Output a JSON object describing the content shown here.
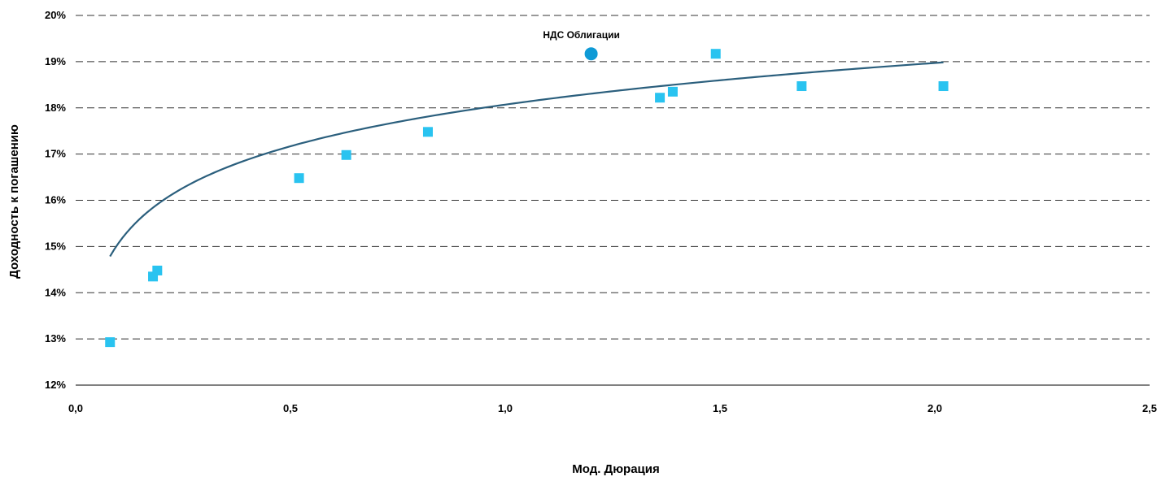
{
  "chart_data": {
    "type": "scatter",
    "title": "",
    "xlabel": "Мод. Дюрация",
    "ylabel": "Доходность к погашению",
    "xlim": [
      0,
      2.5
    ],
    "ylim": [
      12,
      20
    ],
    "x_ticks": [
      0,
      0.5,
      1.0,
      1.5,
      2.0,
      2.5
    ],
    "x_tick_labels": [
      "0,0",
      "0,5",
      "1,0",
      "1,5",
      "2,0",
      "2,5"
    ],
    "y_ticks": [
      12,
      13,
      14,
      15,
      16,
      17,
      18,
      19,
      20
    ],
    "y_tick_labels": [
      "12%",
      "13%",
      "14%",
      "15%",
      "16%",
      "17%",
      "18%",
      "19%",
      "20%"
    ],
    "grid": "horizontal-dashed",
    "legend": "none",
    "series": [
      {
        "marker": "square",
        "color": "#29c3f0",
        "points": [
          {
            "x": 0.08,
            "y": 12.93
          },
          {
            "x": 0.18,
            "y": 14.35
          },
          {
            "x": 0.19,
            "y": 14.48
          },
          {
            "x": 0.52,
            "y": 16.48
          },
          {
            "x": 0.63,
            "y": 16.98
          },
          {
            "x": 0.82,
            "y": 17.48
          },
          {
            "x": 1.36,
            "y": 18.22
          },
          {
            "x": 1.39,
            "y": 18.35
          },
          {
            "x": 1.49,
            "y": 19.17
          },
          {
            "x": 1.69,
            "y": 18.47
          },
          {
            "x": 2.02,
            "y": 18.47
          }
        ]
      },
      {
        "marker": "circle",
        "color": "#0e9ad6",
        "points": [
          {
            "x": 1.2,
            "y": 19.17
          }
        ]
      }
    ],
    "trendline": {
      "type": "logarithmic",
      "color": "#2b5f7d",
      "a": 18.07,
      "b": 1.3,
      "x_range": [
        0.08,
        2.02
      ]
    },
    "annotations": [
      {
        "text": "НДС Облигации",
        "x": 1.2,
        "y": 19.17
      }
    ]
  }
}
